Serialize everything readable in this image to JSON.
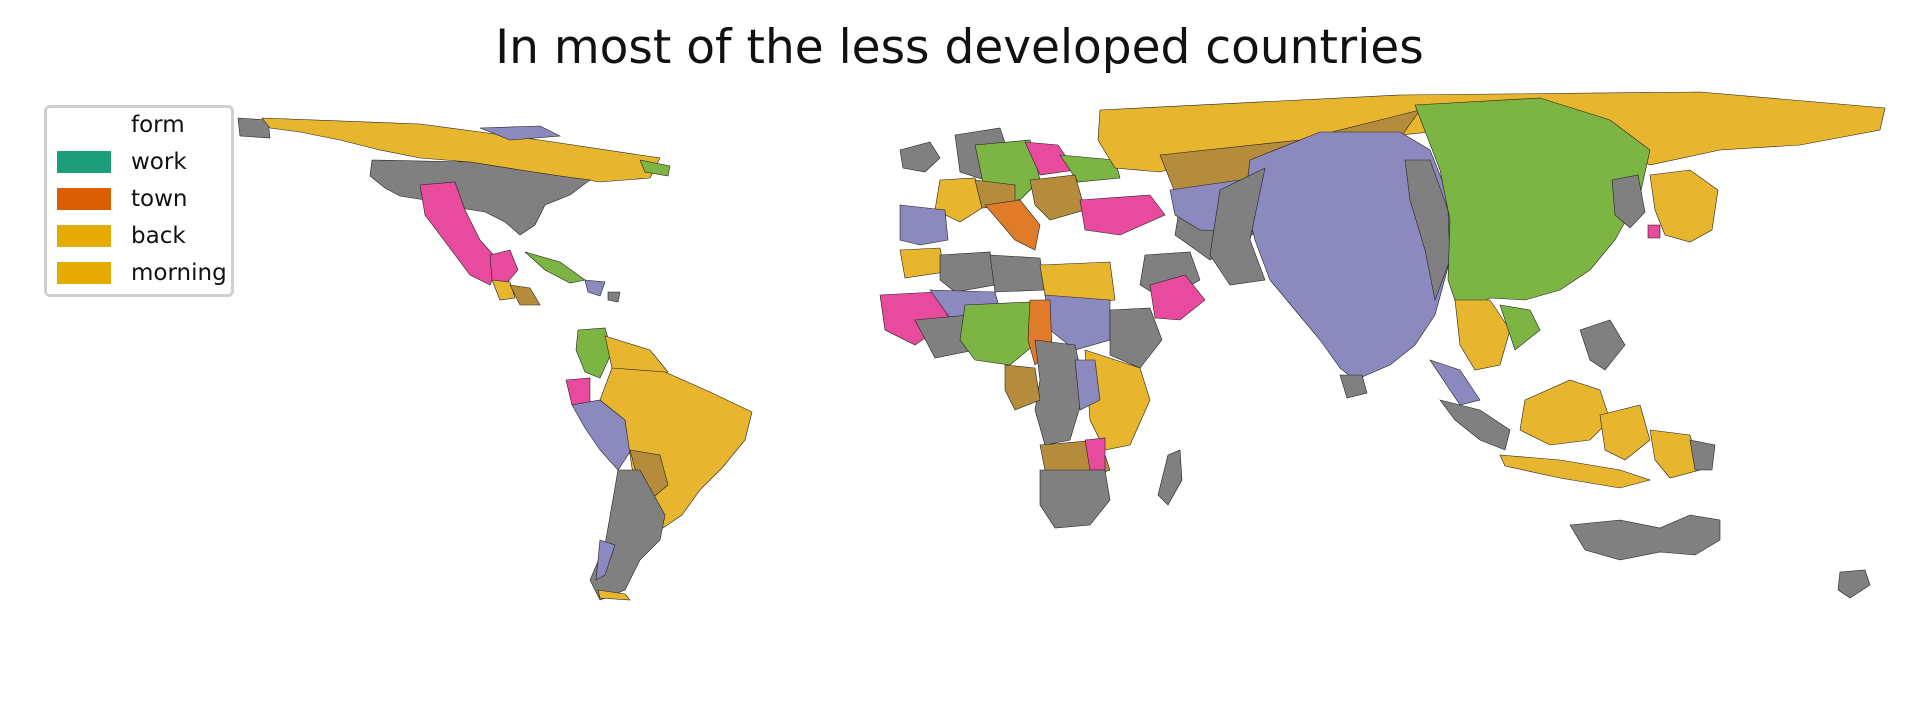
{
  "title": "In most of the less developed countries",
  "legend": {
    "title": "form",
    "items": [
      {
        "label": "work",
        "color": "#1b9e77"
      },
      {
        "label": "town",
        "color": "#d95f02"
      },
      {
        "label": "back",
        "color": "#e6ab02"
      },
      {
        "label": "morning",
        "color": "#e6ab02"
      }
    ]
  },
  "colors": {
    "gray": "#808080",
    "purple": "#8c89bf",
    "green": "#7db544",
    "pink": "#e84a9e",
    "yellow": "#e7b52e",
    "brown": "#b48c3c",
    "orange": "#e07b2a"
  }
}
